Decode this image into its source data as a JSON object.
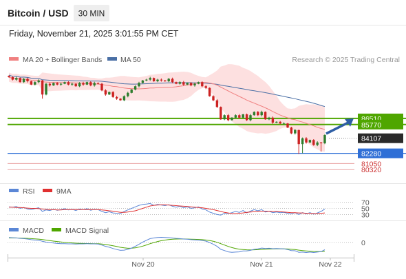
{
  "header": {
    "symbol": "Bitcoin / USD",
    "timeframe": "30 MIN",
    "datetime": "Friday, November 21, 2025 3:01:55 PM CET"
  },
  "colors": {
    "up": "#2d7d2d",
    "down": "#cc2222",
    "ma20": "#f08080",
    "band_fill": "#fde0e0",
    "ma50": "#4a6fa5",
    "green_level": "#4fa600",
    "blue_level": "#2f6fd6",
    "red_level": "#e8a0a0",
    "current_price": "#2a2a2a",
    "arrow": "#2f5fa5",
    "rsi": "#5b87d6",
    "rsi_ma": "#e03030",
    "macd": "#5b87d6",
    "macd_signal": "#4fa600"
  },
  "legend": {
    "ma20_label": "MA 20 + Bollinger Bands",
    "ma50_label": "MA 50",
    "copyright": "Research © 2025 Trading Central",
    "rsi_label": "RSI",
    "rsi_ma_label": "9MA",
    "macd_label": "MACD",
    "macd_signal_label": "MACD Signal"
  },
  "chart_data": [
    {
      "type": "candlestick",
      "title": "Bitcoin / USD",
      "x_ticks": [
        "Nov 20",
        "Nov 21",
        "Nov 22"
      ],
      "ylim": [
        79000,
        92500
      ],
      "closes": [
        91500,
        91200,
        91400,
        90900,
        91300,
        91000,
        90600,
        90900,
        91100,
        89400,
        90700,
        90500,
        90800,
        90600,
        90700,
        90900,
        90600,
        90700,
        90400,
        90800,
        90600,
        90900,
        90500,
        90800,
        90700,
        89900,
        89400,
        89700,
        89100,
        88900,
        88700,
        89200,
        89600,
        90000,
        90400,
        90800,
        91100,
        91200,
        91400,
        91000,
        91200,
        91100,
        91000,
        91300,
        90900,
        90700,
        90900,
        90600,
        90800,
        90500,
        90700,
        90900,
        90400,
        90200,
        89200,
        88700,
        87900,
        86400,
        86900,
        86300,
        86600,
        86900,
        86600,
        87000,
        86300,
        86900,
        87300,
        86900,
        87300,
        86400,
        86600,
        86000,
        86100,
        85900,
        85900,
        85400,
        84700,
        85100,
        83400,
        84100,
        83600,
        83900,
        83300,
        83600,
        83500,
        84500
      ],
      "price_levels": [
        {
          "value": 86510,
          "label": "86510",
          "kind": "resistance"
        },
        {
          "value": 85770,
          "label": "85770",
          "kind": "resistance"
        },
        {
          "value": 84107,
          "label": "84107",
          "kind": "current"
        },
        {
          "value": 82280,
          "label": "82280",
          "kind": "pivot"
        },
        {
          "value": 81050,
          "label": "81050",
          "kind": "support"
        },
        {
          "value": 80320,
          "label": "80320",
          "kind": "support"
        }
      ],
      "series": [
        {
          "name": "MA 20 + Bollinger Bands"
        },
        {
          "name": "MA 50"
        }
      ]
    },
    {
      "type": "line",
      "title": "RSI",
      "y_ticks": [
        70,
        50,
        30
      ],
      "ylim": [
        15,
        85
      ],
      "series": [
        {
          "name": "RSI",
          "values": [
            55,
            54,
            56,
            50,
            53,
            48,
            46,
            49,
            52,
            40,
            45,
            43,
            47,
            44,
            46,
            49,
            45,
            47,
            43,
            48,
            46,
            49,
            44,
            47,
            46,
            40,
            36,
            39,
            35,
            34,
            33,
            40,
            45,
            50,
            55,
            60,
            63,
            64,
            66,
            60,
            63,
            61,
            59,
            62,
            57,
            54,
            57,
            52,
            55,
            50,
            52,
            55,
            48,
            45,
            38,
            34,
            30,
            28,
            34,
            33,
            36,
            40,
            37,
            43,
            35,
            41,
            46,
            42,
            46,
            38,
            41,
            36,
            38,
            36,
            37,
            34,
            32,
            36,
            30,
            36,
            32,
            36,
            31,
            35,
            40,
            48
          ]
        },
        {
          "name": "9MA",
          "values": [
            54,
            54,
            53,
            53,
            52,
            51,
            50,
            50,
            49,
            48,
            47,
            46,
            46,
            45,
            45,
            46,
            46,
            46,
            46,
            46,
            46,
            46,
            46,
            46,
            46,
            45,
            44,
            42,
            41,
            39,
            37,
            37,
            38,
            40,
            42,
            46,
            50,
            54,
            58,
            60,
            61,
            62,
            62,
            61,
            60,
            59,
            58,
            57,
            56,
            55,
            54,
            53,
            52,
            50,
            48,
            46,
            43,
            40,
            37,
            35,
            33,
            33,
            34,
            35,
            37,
            38,
            39,
            40,
            41,
            41,
            41,
            40,
            40,
            39,
            38,
            37,
            36,
            36,
            35,
            35,
            34,
            34,
            33,
            33,
            34,
            35
          ]
        }
      ]
    },
    {
      "type": "line",
      "title": "MACD",
      "y_ticks": [
        0
      ],
      "series": [
        {
          "name": "MACD",
          "values": [
            120,
            115,
            110,
            100,
            95,
            85,
            70,
            60,
            55,
            30,
            10,
            0,
            -10,
            -20,
            -25,
            -25,
            -30,
            -30,
            -35,
            -30,
            -30,
            -25,
            -30,
            -30,
            -35,
            -60,
            -90,
            -110,
            -140,
            -165,
            -185,
            -180,
            -160,
            -130,
            -90,
            -40,
            10,
            55,
            95,
            110,
            120,
            125,
            120,
            118,
            110,
            100,
            95,
            85,
            80,
            70,
            65,
            60,
            50,
            35,
            0,
            -40,
            -90,
            -160,
            -190,
            -220,
            -230,
            -225,
            -220,
            -200,
            -200,
            -185,
            -160,
            -150,
            -130,
            -140,
            -135,
            -145,
            -140,
            -145,
            -150,
            -165,
            -190,
            -195,
            -230,
            -225,
            -235,
            -225,
            -235,
            -225,
            -215,
            -170
          ]
        },
        {
          "name": "MACD Signal",
          "values": [
            110,
            110,
            110,
            108,
            105,
            100,
            95,
            88,
            82,
            72,
            60,
            48,
            36,
            25,
            15,
            6,
            -2,
            -8,
            -14,
            -18,
            -20,
            -22,
            -24,
            -25,
            -27,
            -33,
            -45,
            -58,
            -75,
            -93,
            -112,
            -126,
            -135,
            -134,
            -125,
            -108,
            -84,
            -56,
            -26,
            1,
            25,
            45,
            60,
            72,
            80,
            84,
            86,
            86,
            84,
            81,
            78,
            74,
            69,
            62,
            50,
            32,
            8,
            -26,
            -59,
            -91,
            -119,
            -140,
            -156,
            -165,
            -172,
            -175,
            -172,
            -168,
            -161,
            -157,
            -153,
            -151,
            -149,
            -148,
            -149,
            -152,
            -160,
            -167,
            -180,
            -189,
            -198,
            -204,
            -210,
            -213,
            -214,
            -205
          ]
        }
      ]
    }
  ]
}
